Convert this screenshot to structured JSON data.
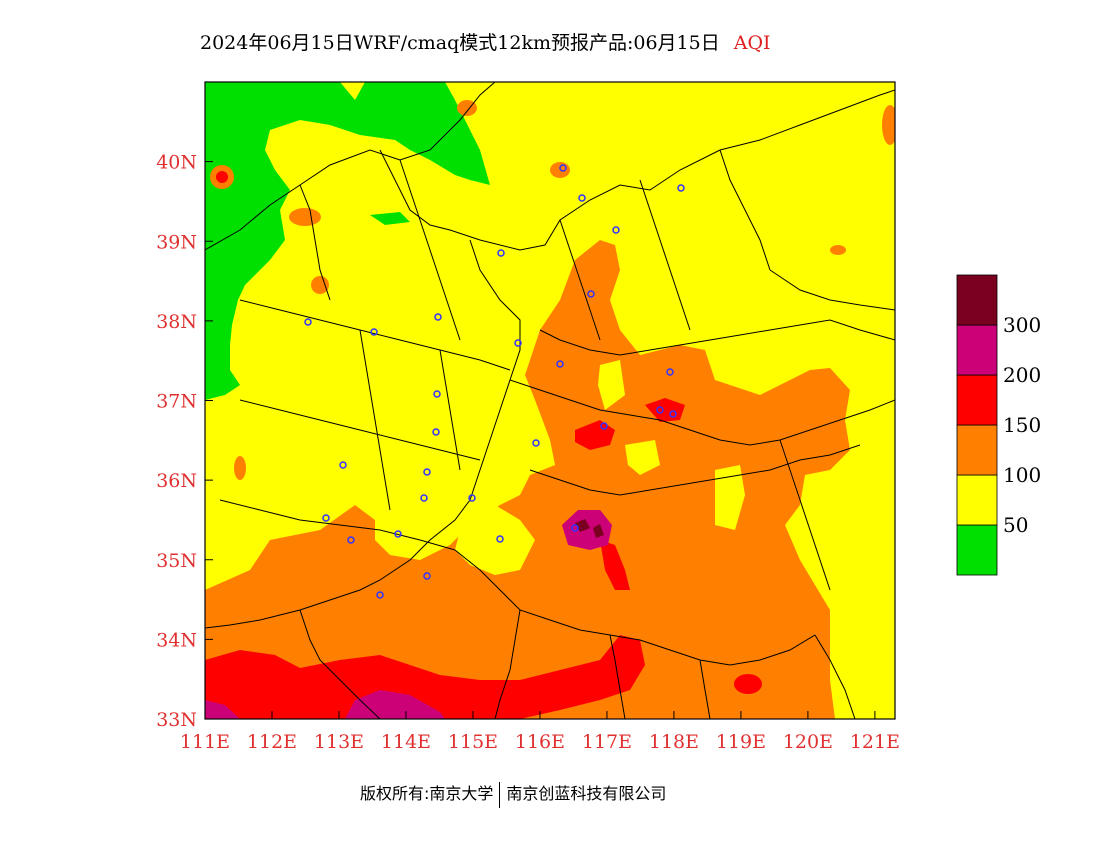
{
  "title": {
    "main": "2024年06月15日WRF/cmaq模式12km预报产品:06月15日",
    "variable": "AQI"
  },
  "map": {
    "lon_labels": [
      "111E",
      "112E",
      "113E",
      "114E",
      "115E",
      "116E",
      "117E",
      "118E",
      "119E",
      "120E",
      "121E"
    ],
    "lat_labels": [
      "40N",
      "39N",
      "38N",
      "37N",
      "36N",
      "35N",
      "34N",
      "33N"
    ],
    "lon_range": [
      111,
      121.3
    ],
    "lat_range": [
      33,
      41
    ],
    "colors": {
      "good": "#00e000",
      "moderate": "#ffff00",
      "sensitive": "#ff8000",
      "unhealthy": "#ff0000",
      "very_unhealthy": "#cc0077",
      "hazardous": "#7a0020",
      "station_marker": "#3333ff",
      "boundary": "#000000"
    }
  },
  "legend": {
    "tick_labels": [
      "50",
      "100",
      "150",
      "200",
      "300"
    ],
    "colors": [
      "#00e000",
      "#ffff00",
      "#ff8000",
      "#ff0000",
      "#cc0077",
      "#7a0020"
    ]
  },
  "footer": {
    "copyright": "版权所有:南京大学",
    "company": "南京创蓝科技有限公司"
  }
}
